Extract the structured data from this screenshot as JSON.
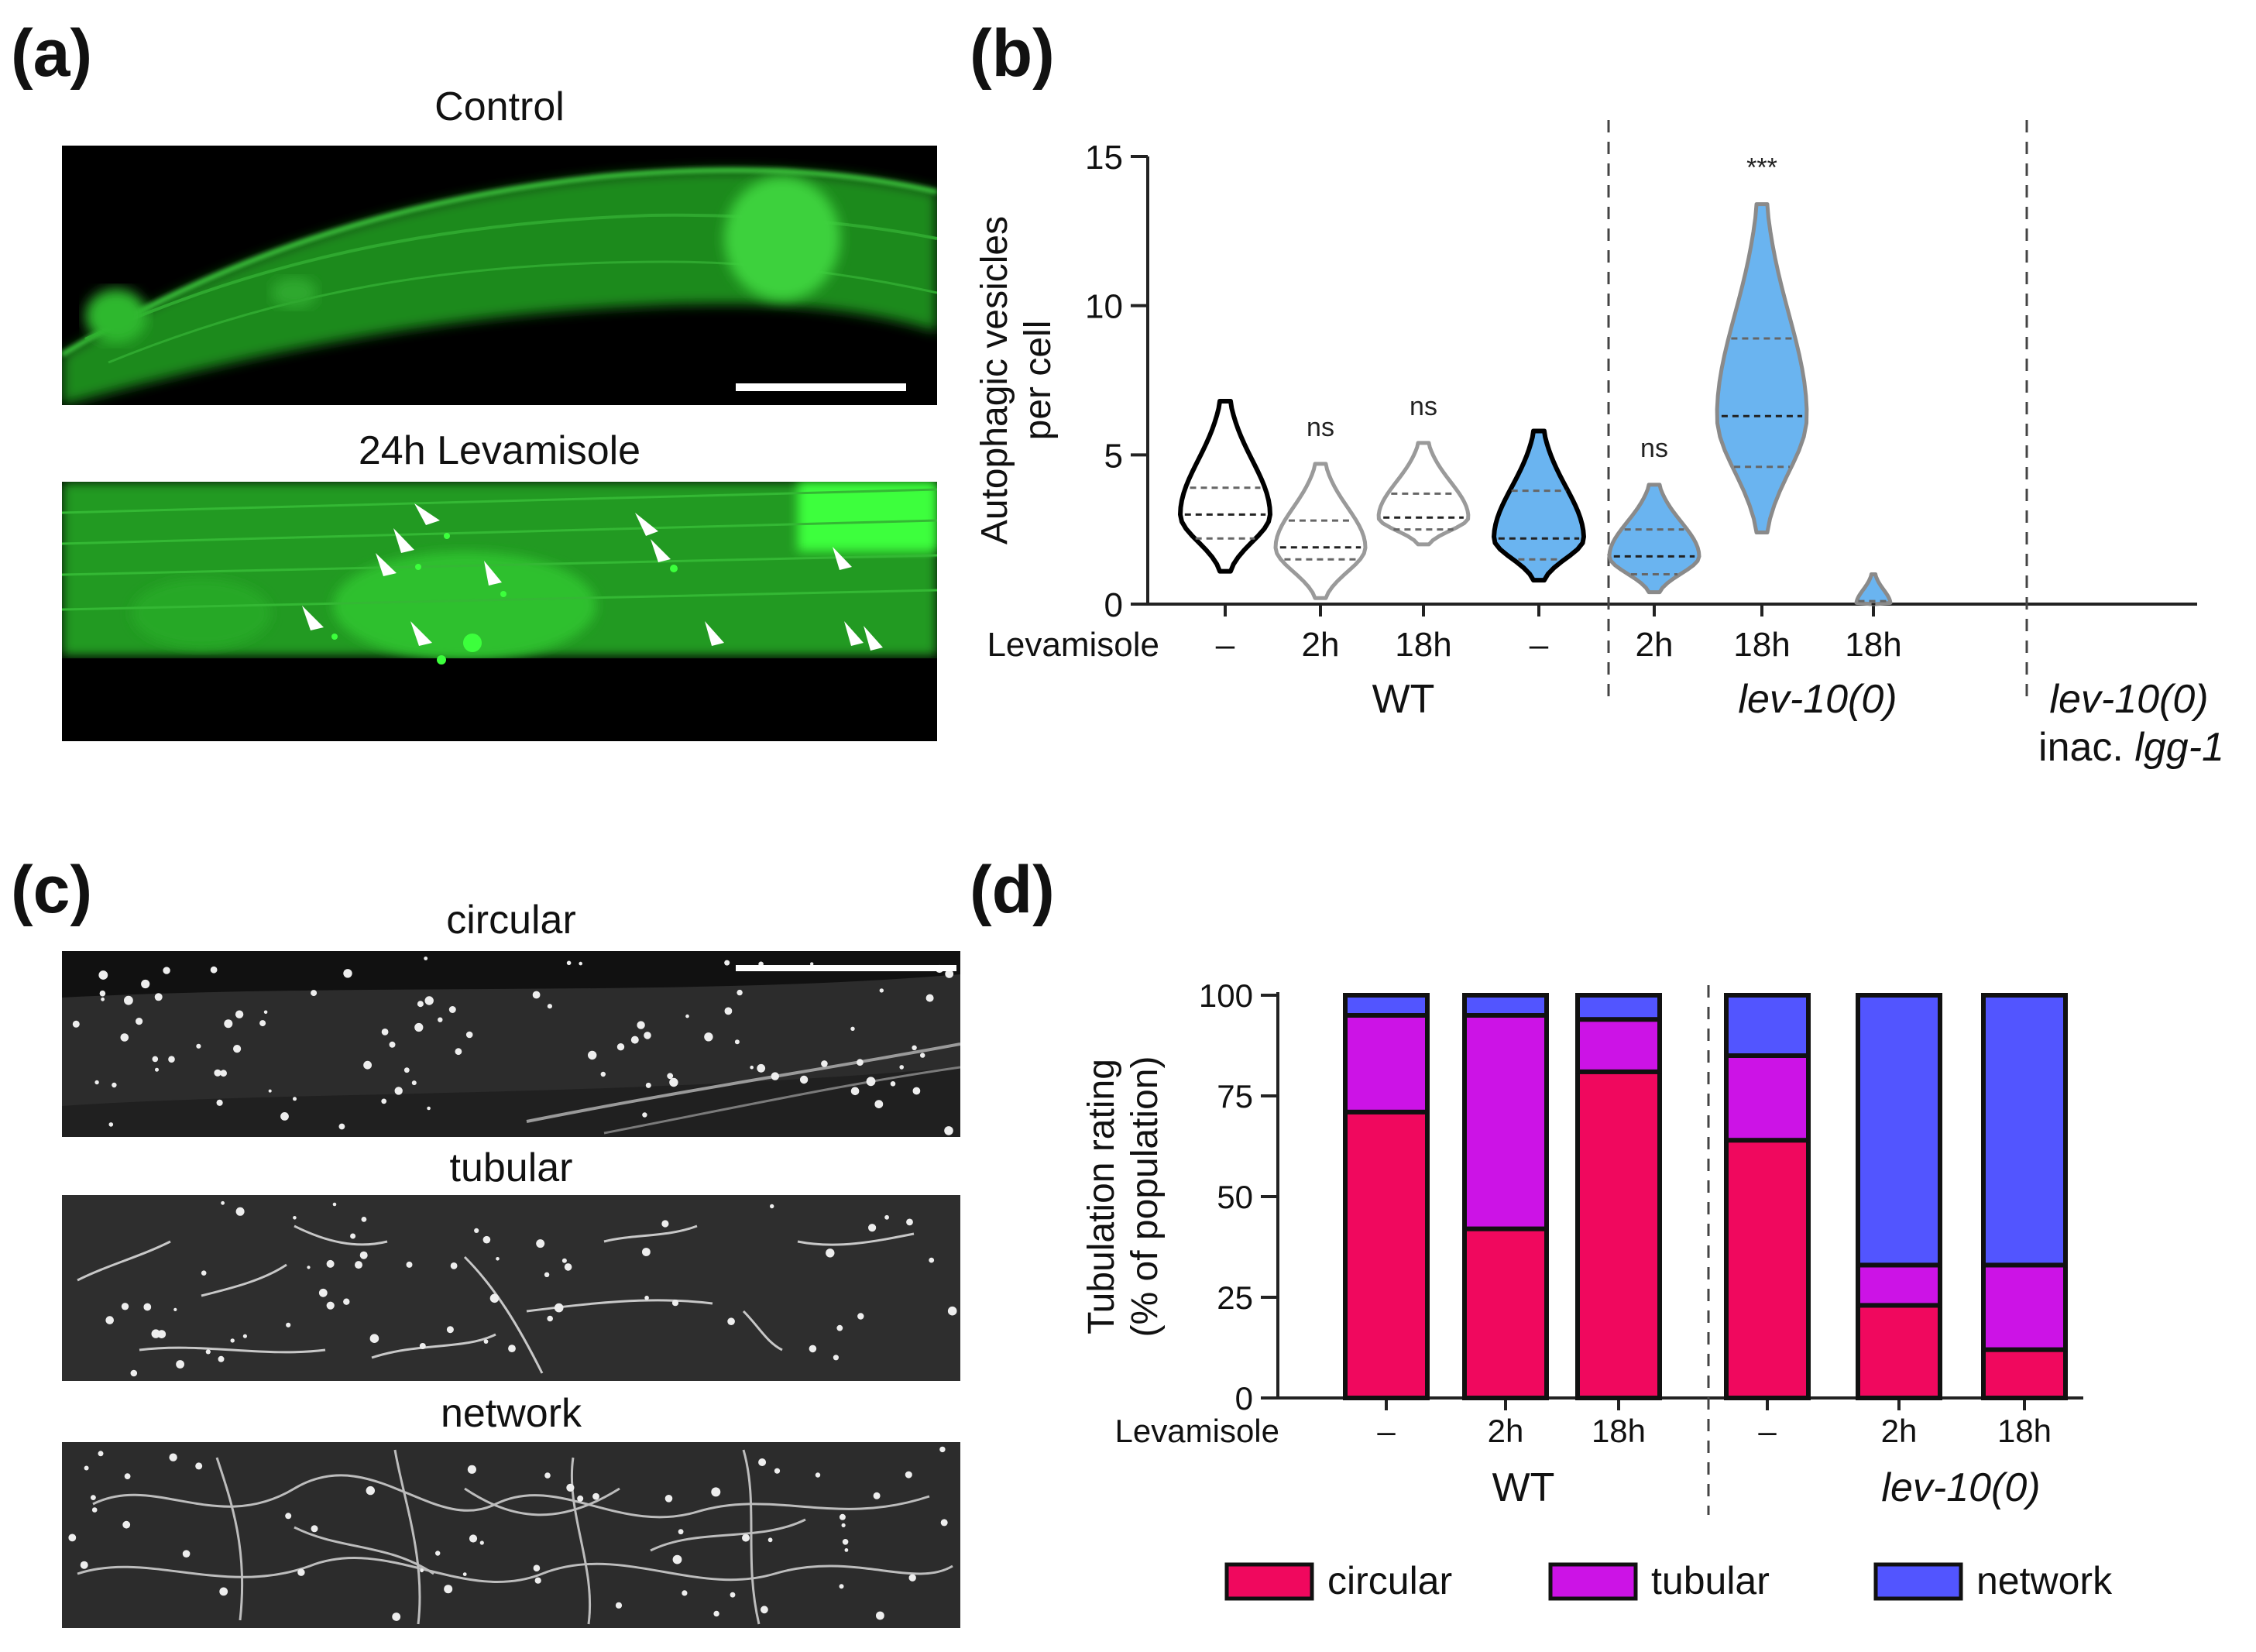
{
  "panels": {
    "a": {
      "letter": "(a)",
      "image_titles": [
        "Control",
        "24h Levamisole"
      ]
    },
    "b": {
      "letter": "(b)",
      "row_label": "Levamisole",
      "conditions": [
        "–",
        "2h",
        "18h",
        "–",
        "2h",
        "18h",
        "18h"
      ],
      "groups": [
        {
          "name": "WT",
          "italic": false
        },
        {
          "name": "lev-10(0)",
          "italic": true
        },
        {
          "name": "lev-10(0)",
          "italic": true
        },
        {
          "name_prefix": "inac. ",
          "name_gene": "lgg-1"
        }
      ]
    },
    "c": {
      "letter": "(c)",
      "image_titles": [
        "circular",
        "tubular",
        "network"
      ]
    },
    "d": {
      "letter": "(d)",
      "row_label": "Levamisole",
      "conditions": [
        "–",
        "2h",
        "18h",
        "–",
        "2h",
        "18h"
      ],
      "groups": [
        {
          "name": "WT",
          "italic": false
        },
        {
          "name": "lev-10(0)",
          "italic": true
        }
      ]
    }
  },
  "chart_data": [
    {
      "type": "violin",
      "panel": "b",
      "ylabel": "Autophagic vesicles per cell",
      "ylabel_lines": [
        "Autophagic vesicles",
        "per cell"
      ],
      "ylim": [
        0,
        15
      ],
      "yticks": [
        0,
        5,
        10,
        15
      ],
      "categories": [
        "–",
        "2h",
        "18h",
        "–",
        "2h",
        "18h",
        "18h"
      ],
      "violins": [
        {
          "min": 1.1,
          "q1": 2.2,
          "median": 3.0,
          "q3": 3.9,
          "max": 6.8,
          "annotation": ""
        },
        {
          "min": 0.2,
          "q1": 1.5,
          "median": 1.9,
          "q3": 2.8,
          "max": 4.7,
          "annotation": "ns"
        },
        {
          "min": 2.0,
          "q1": 2.5,
          "median": 2.9,
          "q3": 3.7,
          "max": 5.4,
          "annotation": "ns"
        },
        {
          "min": 0.8,
          "q1": 1.5,
          "median": 2.2,
          "q3": 3.8,
          "max": 5.8,
          "annotation": ""
        },
        {
          "min": 0.4,
          "q1": 1.0,
          "median": 1.6,
          "q3": 2.5,
          "max": 4.0,
          "annotation": "ns"
        },
        {
          "min": 2.4,
          "q1": 4.6,
          "median": 6.3,
          "q3": 8.9,
          "max": 13.4,
          "annotation": "***"
        },
        {
          "min": 0.0,
          "q1": 0.0,
          "median": 0.0,
          "q3": 0.1,
          "max": 1.0,
          "annotation": ""
        }
      ],
      "colors": {
        "wt": "#ffffff",
        "lev": "#6ab4f0",
        "wt_edge_first": "#000000",
        "wt_edge": "#9a9a9a",
        "lev_edge_first": "#000000",
        "lev_edge": "#8a8a8a"
      }
    },
    {
      "type": "stacked_bar",
      "panel": "d",
      "ylabel": "Tubulation rating (% of population)",
      "ylabel_lines": [
        "Tubulation rating",
        "(% of population)"
      ],
      "ylim": [
        0,
        100
      ],
      "yticks": [
        0,
        25,
        50,
        75,
        100
      ],
      "categories": [
        "–",
        "2h",
        "18h",
        "–",
        "2h",
        "18h"
      ],
      "series": [
        {
          "name": "circular",
          "color": "#f0085e",
          "values": [
            71,
            42,
            81,
            64,
            23,
            12
          ]
        },
        {
          "name": "tubular",
          "color": "#cc13e6",
          "values": [
            24,
            53,
            13,
            21,
            10,
            21
          ]
        },
        {
          "name": "network",
          "color": "#5255ff",
          "values": [
            5,
            5,
            6,
            15,
            67,
            67
          ]
        }
      ],
      "legend_position": "bottom"
    }
  ]
}
